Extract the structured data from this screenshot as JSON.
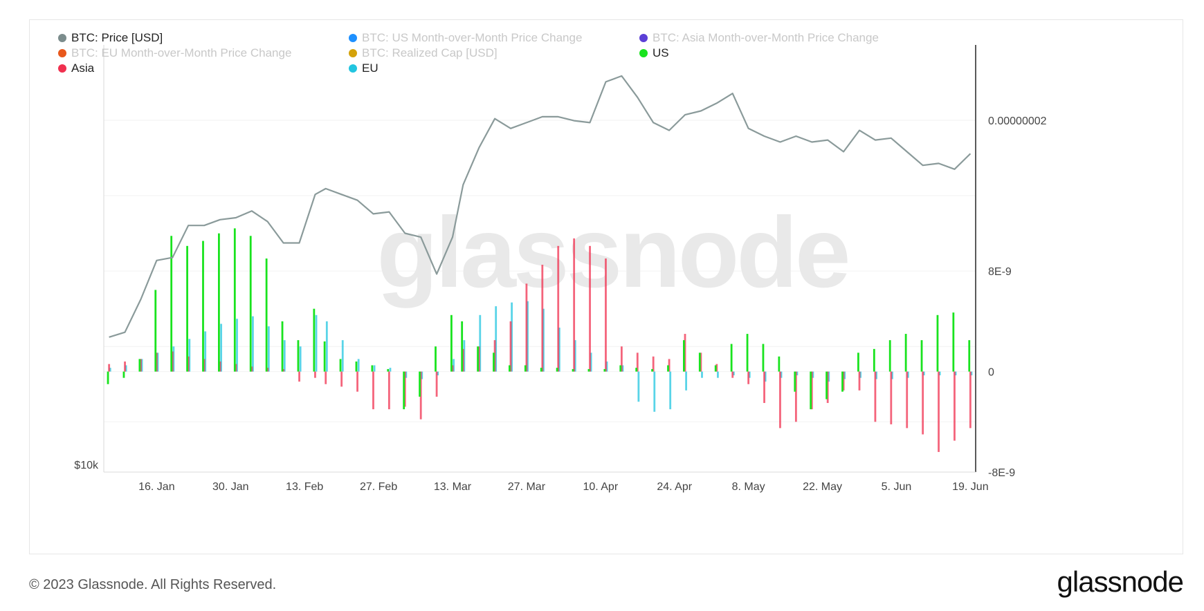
{
  "watermark": "glassnode",
  "footer": {
    "copyright": "© 2023 Glassnode. All Rights Reserved.",
    "logo": "glassnode"
  },
  "legend": [
    {
      "label": "BTC: Price [USD]",
      "color": "#7b8c8c",
      "muted": false
    },
    {
      "label": "BTC: US Month-over-Month Price Change",
      "color": "#1e90ff",
      "muted": true
    },
    {
      "label": "BTC: Asia Month-over-Month Price Change",
      "color": "#5b3fd6",
      "muted": true
    },
    {
      "label": "BTC: EU Month-over-Month Price Change",
      "color": "#e8581c",
      "muted": true
    },
    {
      "label": "BTC: Realized Cap [USD]",
      "color": "#d4a20a",
      "muted": true
    },
    {
      "label": "US",
      "color": "#19e31e",
      "muted": false
    },
    {
      "label": "Asia",
      "color": "#f0304f",
      "muted": false
    },
    {
      "label": "EU",
      "color": "#22c5e0",
      "muted": false
    }
  ],
  "chart_data": {
    "type": "bar",
    "x_ticks": [
      "16. Jan",
      "30. Jan",
      "13. Feb",
      "27. Feb",
      "13. Mar",
      "27. Mar",
      "10. Apr",
      "24. Apr",
      "8. May",
      "22. May",
      "5. Jun",
      "19. Jun"
    ],
    "y_left_label": "$10k",
    "y_right_ticks": [
      "0.00000002",
      "8E-9",
      "0",
      "-8E-9"
    ],
    "y_right_range": [
      -8e-09,
      2.6e-08
    ],
    "price_range": [
      10000,
      32000
    ],
    "series": [
      {
        "name": "BTC: Price [USD]",
        "type": "line",
        "color": "#8a9a9a",
        "x": [
          "2023-01-07",
          "2023-01-10",
          "2023-01-13",
          "2023-01-16",
          "2023-01-19",
          "2023-01-22",
          "2023-01-25",
          "2023-01-28",
          "2023-01-31",
          "2023-02-03",
          "2023-02-06",
          "2023-02-09",
          "2023-02-12",
          "2023-02-15",
          "2023-02-17",
          "2023-02-20",
          "2023-02-23",
          "2023-02-26",
          "2023-03-01",
          "2023-03-04",
          "2023-03-07",
          "2023-03-10",
          "2023-03-13",
          "2023-03-15",
          "2023-03-18",
          "2023-03-21",
          "2023-03-24",
          "2023-03-27",
          "2023-03-30",
          "2023-04-02",
          "2023-04-05",
          "2023-04-08",
          "2023-04-11",
          "2023-04-14",
          "2023-04-17",
          "2023-04-20",
          "2023-04-23",
          "2023-04-26",
          "2023-04-29",
          "2023-05-02",
          "2023-05-05",
          "2023-05-08",
          "2023-05-11",
          "2023-05-14",
          "2023-05-17",
          "2023-05-20",
          "2023-05-23",
          "2023-05-26",
          "2023-05-29",
          "2023-06-01",
          "2023-06-04",
          "2023-06-07",
          "2023-06-10",
          "2023-06-13",
          "2023-06-16",
          "2023-06-19"
        ],
        "y": [
          16950,
          17200,
          18900,
          20900,
          21050,
          22700,
          22700,
          23000,
          23100,
          23450,
          22900,
          21800,
          21800,
          24300,
          24600,
          24300,
          24000,
          23300,
          23400,
          22300,
          22100,
          20200,
          22100,
          24800,
          26700,
          28200,
          27700,
          28000,
          28300,
          28300,
          28100,
          28000,
          30100,
          30400,
          29300,
          28000,
          27600,
          28400,
          28600,
          29000,
          29500,
          27700,
          27300,
          27000,
          27300,
          27000,
          27100,
          26500,
          27600,
          27100,
          27200,
          26500,
          25800,
          25900,
          25600,
          26400
        ]
      },
      {
        "name": "US",
        "type": "bar",
        "color": "#19e31e",
        "x": [
          "2023-01-07",
          "2023-01-10",
          "2023-01-13",
          "2023-01-16",
          "2023-01-19",
          "2023-01-22",
          "2023-01-25",
          "2023-01-28",
          "2023-01-31",
          "2023-02-03",
          "2023-02-06",
          "2023-02-09",
          "2023-02-12",
          "2023-02-15",
          "2023-02-17",
          "2023-02-20",
          "2023-02-23",
          "2023-02-26",
          "2023-03-01",
          "2023-03-04",
          "2023-03-07",
          "2023-03-10",
          "2023-03-13",
          "2023-03-15",
          "2023-03-18",
          "2023-03-21",
          "2023-03-24",
          "2023-03-27",
          "2023-03-30",
          "2023-04-02",
          "2023-04-05",
          "2023-04-08",
          "2023-04-11",
          "2023-04-14",
          "2023-04-17",
          "2023-04-20",
          "2023-04-23",
          "2023-04-26",
          "2023-04-29",
          "2023-05-02",
          "2023-05-05",
          "2023-05-08",
          "2023-05-11",
          "2023-05-14",
          "2023-05-17",
          "2023-05-20",
          "2023-05-23",
          "2023-05-26",
          "2023-05-29",
          "2023-06-01",
          "2023-06-04",
          "2023-06-07",
          "2023-06-10",
          "2023-06-13",
          "2023-06-16",
          "2023-06-19"
        ],
        "y": [
          -1e-09,
          -5e-10,
          1e-09,
          6.5e-09,
          1.08e-08,
          1e-08,
          1.04e-08,
          1.1e-08,
          1.14e-08,
          1.08e-08,
          9e-09,
          4e-09,
          2.5e-09,
          5e-09,
          2.4e-09,
          1e-09,
          8e-10,
          5e-10,
          2e-10,
          -3e-09,
          -2e-09,
          2e-09,
          4.5e-09,
          4e-09,
          2e-09,
          1.5e-09,
          5e-10,
          5e-10,
          3e-10,
          3e-10,
          2e-10,
          2e-10,
          2e-10,
          5e-10,
          3e-10,
          2e-10,
          5e-10,
          2.5e-09,
          1.5e-09,
          5e-10,
          2.2e-09,
          3e-09,
          2.2e-09,
          1.2e-09,
          -1.6e-09,
          -3e-09,
          -2.2e-09,
          -1.6e-09,
          1.5e-09,
          1.8e-09,
          2.5e-09,
          3e-09,
          2.5e-09,
          4.5e-09,
          4.7e-09,
          2.5e-09
        ]
      },
      {
        "name": "Asia",
        "type": "bar",
        "color": "#f0304f",
        "x": [
          "2023-01-07",
          "2023-01-10",
          "2023-01-13",
          "2023-01-16",
          "2023-01-19",
          "2023-01-22",
          "2023-01-25",
          "2023-01-28",
          "2023-01-31",
          "2023-02-03",
          "2023-02-06",
          "2023-02-09",
          "2023-02-12",
          "2023-02-15",
          "2023-02-17",
          "2023-02-20",
          "2023-02-23",
          "2023-02-26",
          "2023-03-01",
          "2023-03-04",
          "2023-03-07",
          "2023-03-10",
          "2023-03-13",
          "2023-03-15",
          "2023-03-18",
          "2023-03-21",
          "2023-03-24",
          "2023-03-27",
          "2023-03-30",
          "2023-04-02",
          "2023-04-05",
          "2023-04-08",
          "2023-04-11",
          "2023-04-14",
          "2023-04-17",
          "2023-04-20",
          "2023-04-23",
          "2023-04-26",
          "2023-04-29",
          "2023-05-02",
          "2023-05-05",
          "2023-05-08",
          "2023-05-11",
          "2023-05-14",
          "2023-05-17",
          "2023-05-20",
          "2023-05-23",
          "2023-05-26",
          "2023-05-29",
          "2023-06-01",
          "2023-06-04",
          "2023-06-07",
          "2023-06-10",
          "2023-06-13",
          "2023-06-16",
          "2023-06-19"
        ],
        "y": [
          6e-10,
          8e-10,
          1e-09,
          1.5e-09,
          1.6e-09,
          1.2e-09,
          1e-09,
          8e-10,
          6e-10,
          4e-10,
          3e-10,
          2e-10,
          -8e-10,
          -5e-10,
          -1e-09,
          -1.2e-09,
          -1.6e-09,
          -3e-09,
          -3e-09,
          -2.8e-09,
          -3.8e-09,
          -2e-09,
          5e-10,
          1.8e-09,
          2e-09,
          2.5e-09,
          4e-09,
          7e-09,
          8.5e-09,
          1e-08,
          1.06e-08,
          1e-08,
          9e-09,
          2e-09,
          1.5e-09,
          1.2e-09,
          1e-09,
          3e-09,
          1.5e-09,
          6e-10,
          -5e-10,
          -1e-09,
          -2.5e-09,
          -4.5e-09,
          -4e-09,
          -3e-09,
          -2.5e-09,
          -1.5e-09,
          -1.5e-09,
          -4e-09,
          -4.2e-09,
          -4.5e-09,
          -5e-09,
          -6.4e-09,
          -5.5e-09,
          -4.5e-09
        ]
      },
      {
        "name": "EU",
        "type": "bar",
        "color": "#22c5e0",
        "x": [
          "2023-01-07",
          "2023-01-10",
          "2023-01-13",
          "2023-01-16",
          "2023-01-19",
          "2023-01-22",
          "2023-01-25",
          "2023-01-28",
          "2023-01-31",
          "2023-02-03",
          "2023-02-06",
          "2023-02-09",
          "2023-02-12",
          "2023-02-15",
          "2023-02-17",
          "2023-02-20",
          "2023-02-23",
          "2023-02-26",
          "2023-03-01",
          "2023-03-04",
          "2023-03-07",
          "2023-03-10",
          "2023-03-13",
          "2023-03-15",
          "2023-03-18",
          "2023-03-21",
          "2023-03-24",
          "2023-03-27",
          "2023-03-30",
          "2023-04-02",
          "2023-04-05",
          "2023-04-08",
          "2023-04-11",
          "2023-04-14",
          "2023-04-17",
          "2023-04-20",
          "2023-04-23",
          "2023-04-26",
          "2023-04-29",
          "2023-05-02",
          "2023-05-05",
          "2023-05-08",
          "2023-05-11",
          "2023-05-14",
          "2023-05-17",
          "2023-05-20",
          "2023-05-23",
          "2023-05-26",
          "2023-05-29",
          "2023-06-01",
          "2023-06-04",
          "2023-06-07",
          "2023-06-10",
          "2023-06-13",
          "2023-06-16",
          "2023-06-19"
        ],
        "y": [
          3e-10,
          5e-10,
          1e-09,
          1.5e-09,
          2e-09,
          2.6e-09,
          3.2e-09,
          3.8e-09,
          4.2e-09,
          4.4e-09,
          3.6e-09,
          2.5e-09,
          2e-09,
          4.5e-09,
          4e-09,
          2.5e-09,
          1e-09,
          5e-10,
          3e-10,
          -5e-10,
          -6e-10,
          -3e-10,
          1e-09,
          2.5e-09,
          4.5e-09,
          5.2e-09,
          5.5e-09,
          5.6e-09,
          5e-09,
          3.5e-09,
          2.5e-09,
          1.5e-09,
          8e-10,
          5e-10,
          -2.4e-09,
          -3.2e-09,
          -3e-09,
          -1.5e-09,
          -5e-10,
          -5e-10,
          -3e-10,
          -5e-10,
          -8e-10,
          -5e-10,
          -3e-10,
          -5e-10,
          -8e-10,
          -6e-10,
          -5e-10,
          -6e-10,
          -6e-10,
          -5e-10,
          -3e-10,
          -3e-10,
          -3e-10,
          -3e-10
        ]
      }
    ]
  }
}
